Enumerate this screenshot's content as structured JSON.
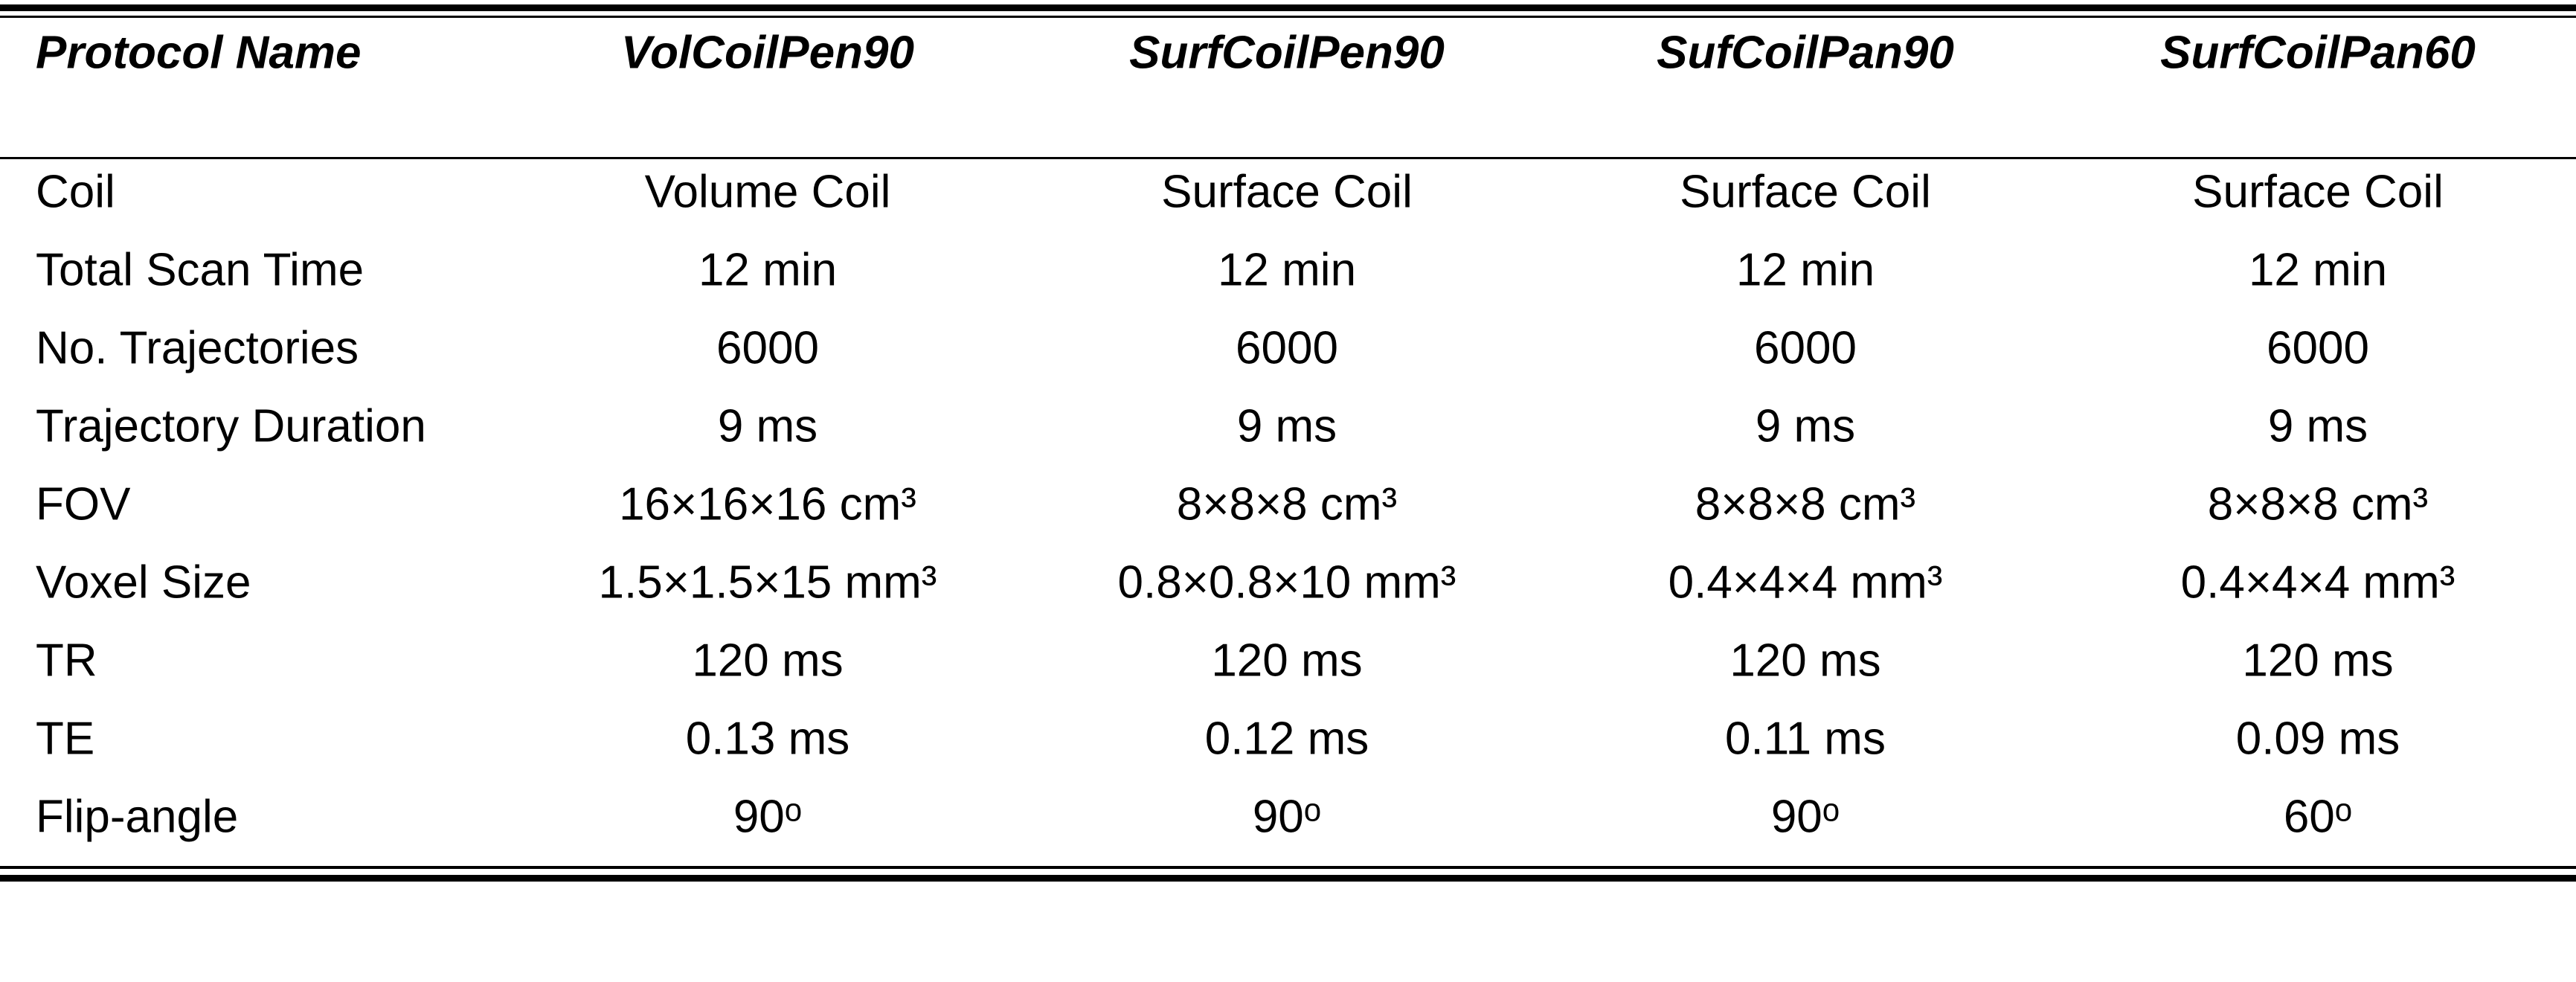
{
  "table": {
    "header": [
      "Protocol Name",
      "VolCoilPen90",
      "SurfCoilPen90",
      "SufCoilPan90",
      "SurfCoilPan60"
    ],
    "rows": [
      [
        "Coil",
        "Volume Coil",
        "Surface Coil",
        "Surface Coil",
        "Surface Coil"
      ],
      [
        "Total Scan Time",
        "12 min",
        "12 min",
        "12 min",
        "12 min"
      ],
      [
        "No. Trajectories",
        "6000",
        "6000",
        "6000",
        "6000"
      ],
      [
        "Trajectory Duration",
        "9 ms",
        "9 ms",
        "9 ms",
        "9 ms"
      ],
      [
        "FOV",
        "16×16×16 cm³",
        "8×8×8 cm³",
        "8×8×8 cm³",
        "8×8×8 cm³"
      ],
      [
        "Voxel Size",
        "1.5×1.5×15 mm³",
        "0.8×0.8×10 mm³",
        "0.4×4×4 mm³",
        "0.4×4×4 mm³"
      ],
      [
        "TR",
        "120 ms",
        "120 ms",
        "120 ms",
        "120 ms"
      ],
      [
        "TE",
        "0.13 ms",
        "0.12 ms",
        "0.11 ms",
        "0.09 ms"
      ],
      [
        "Flip-angle",
        "90ᵒ",
        "90ᵒ",
        "90ᵒ",
        "60ᵒ"
      ]
    ]
  }
}
